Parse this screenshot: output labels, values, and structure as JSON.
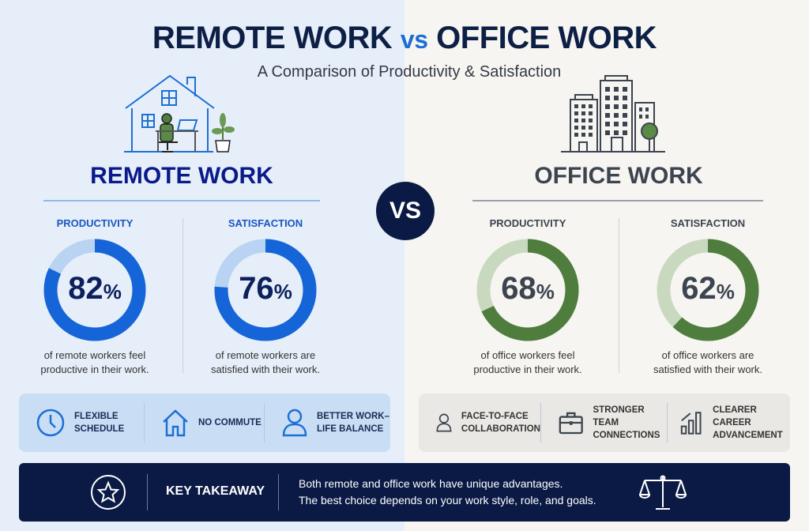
{
  "header": {
    "title_left": "REMOTE WORK",
    "title_vs": "vs",
    "title_right": "OFFICE WORK",
    "subtitle": "A Comparison of Productivity & Satisfaction"
  },
  "vs_badge": "VS",
  "remote": {
    "heading": "REMOTE WORK",
    "icon": "home-office-icon",
    "metrics": [
      {
        "label": "PRODUCTIVITY",
        "value": 82,
        "unit": "%",
        "desc1": "of remote workers feel",
        "desc2": "productive in their work."
      },
      {
        "label": "SATISFACTION",
        "value": 76,
        "unit": "%",
        "desc1": "of remote workers are",
        "desc2": "satisfied with their work."
      }
    ],
    "features": [
      {
        "icon": "clock-icon",
        "line1": "FLEXIBLE",
        "line2": "SCHEDULE"
      },
      {
        "icon": "house-icon",
        "line1": "NO COMMUTE",
        "line2": ""
      },
      {
        "icon": "person-icon",
        "line1": "BETTER WORK–",
        "line2": "LIFE BALANCE"
      }
    ],
    "colors": {
      "fill": "#1565d8",
      "track": "#b8d4f2",
      "heading": "#0a1a8a",
      "label": "#1a56c4"
    }
  },
  "office": {
    "heading": "OFFICE WORK",
    "icon": "office-building-icon",
    "metrics": [
      {
        "label": "PRODUCTIVITY",
        "value": 68,
        "unit": "%",
        "desc1": "of office workers feel",
        "desc2": "productive in their work."
      },
      {
        "label": "SATISFACTION",
        "value": 62,
        "unit": "%",
        "desc1": "of office workers are",
        "desc2": "satisfied with their work."
      }
    ],
    "features": [
      {
        "icon": "person-icon",
        "line1": "FACE-TO-FACE",
        "line2": "COLLABORATION"
      },
      {
        "icon": "briefcase-icon",
        "line1": "STRONGER TEAM",
        "line2": "CONNECTIONS"
      },
      {
        "icon": "bar-chart-icon",
        "line1": "CLEARER CAREER",
        "line2": "ADVANCEMENT"
      }
    ],
    "colors": {
      "fill": "#4e7d3e",
      "track": "#c9d9c0",
      "heading": "#3c4450",
      "label": "#3c4450"
    }
  },
  "takeaway": {
    "icon": "star-icon",
    "label": "KEY TAKEAWAY",
    "line1": "Both remote and office work have unique advantages.",
    "line2": "The best choice depends on your work style, role, and goals.",
    "end_icon": "scales-icon"
  }
}
